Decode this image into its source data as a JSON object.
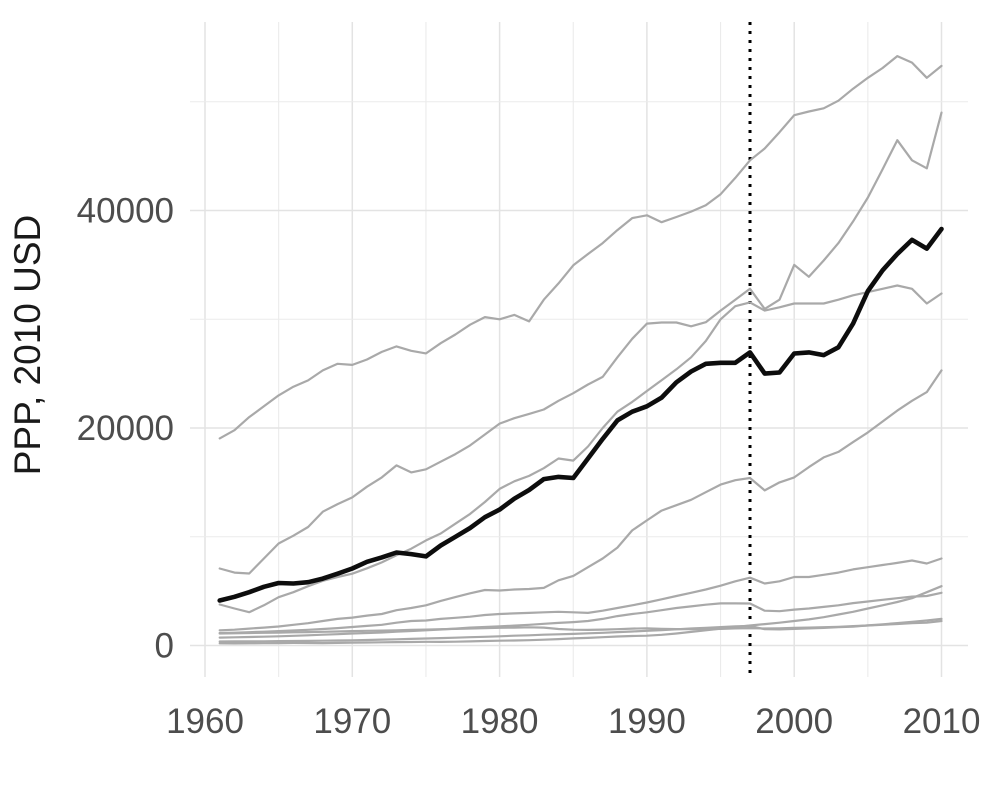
{
  "chart_data": {
    "type": "line",
    "title": "",
    "xlabel": "",
    "ylabel": "PPP, 2010 USD",
    "x_tick_labels": [
      "1960",
      "1970",
      "1980",
      "1990",
      "2000",
      "2010"
    ],
    "x_tick_values": [
      1960,
      1970,
      1980,
      1990,
      2000,
      2010
    ],
    "x_minor_values": [
      1965,
      1975,
      1985,
      1995,
      2005
    ],
    "y_tick_labels": [
      "0",
      "20000",
      "40000"
    ],
    "y_tick_values": [
      0,
      20000,
      40000
    ],
    "y_minor_values": [
      10000,
      30000,
      50000
    ],
    "xlim": [
      1958.5,
      2011.8
    ],
    "ylim": [
      -2900,
      57300
    ],
    "grid": "on",
    "legend": "none",
    "vline": {
      "x": 1997,
      "style": "dotted",
      "color": "#000000"
    },
    "colors": {
      "gray_series": "#a9a9a9",
      "highlight_series": "#0d0d0d",
      "grid_major": "#e3e3e3",
      "grid_minor": "#ebebeb",
      "tick_text": "#4d4d4d",
      "axis_title": "#1a1a1a",
      "background": "#ffffff"
    },
    "x": [
      1961,
      1962,
      1963,
      1964,
      1965,
      1966,
      1967,
      1968,
      1969,
      1970,
      1971,
      1972,
      1973,
      1974,
      1975,
      1976,
      1977,
      1978,
      1979,
      1980,
      1981,
      1982,
      1983,
      1984,
      1985,
      1986,
      1987,
      1988,
      1989,
      1990,
      1991,
      1992,
      1993,
      1994,
      1995,
      1996,
      1997,
      1998,
      1999,
      2000,
      2001,
      2002,
      2003,
      2004,
      2005,
      2006,
      2007,
      2008,
      2009,
      2010
    ],
    "series": [
      {
        "name": "gray-1",
        "role": "context",
        "values": [
          19040,
          19800,
          21000,
          22000,
          23000,
          23800,
          24380,
          25300,
          25900,
          25800,
          26300,
          27000,
          27500,
          27100,
          26860,
          27800,
          28600,
          29500,
          30200,
          30000,
          30400,
          29800,
          31800,
          33300,
          34960,
          36000,
          37000,
          38200,
          39300,
          39560,
          38920,
          39400,
          39900,
          40480,
          41500,
          43000,
          44620,
          45700,
          47200,
          48760,
          49100,
          49400,
          50100,
          51200,
          52200,
          53100,
          54200,
          53600,
          52200,
          53300
        ]
      },
      {
        "name": "gray-2",
        "role": "context",
        "values": [
          7080,
          6700,
          6620,
          8000,
          9380,
          10100,
          10900,
          12300,
          13000,
          13620,
          14600,
          15460,
          16560,
          15920,
          16200,
          16900,
          17600,
          18400,
          19400,
          20400,
          20900,
          21300,
          21700,
          22500,
          23200,
          24000,
          24700,
          26500,
          28200,
          29600,
          29700,
          29700,
          29350,
          29730,
          30800,
          31800,
          32800,
          30950,
          31800,
          35000,
          33900,
          35400,
          37000,
          39000,
          41200,
          43800,
          46460,
          44620,
          43880,
          49000
        ]
      },
      {
        "name": "gray-3",
        "role": "context",
        "values": [
          3770,
          3400,
          3060,
          3700,
          4440,
          4900,
          5450,
          5950,
          6300,
          6600,
          7100,
          7640,
          8300,
          8900,
          9660,
          10300,
          11200,
          12100,
          13200,
          14400,
          15100,
          15600,
          16300,
          17200,
          17000,
          18300,
          20000,
          21500,
          22400,
          23400,
          24400,
          25400,
          26500,
          28000,
          30000,
          31200,
          31550,
          30800,
          31100,
          31450,
          31450,
          31450,
          31800,
          32200,
          32500,
          32800,
          33100,
          32800,
          31450,
          32370
        ]
      },
      {
        "name": "gray-4",
        "role": "context",
        "values": [
          1400,
          1450,
          1550,
          1650,
          1750,
          1900,
          2050,
          2250,
          2450,
          2570,
          2750,
          2900,
          3250,
          3450,
          3700,
          4100,
          4450,
          4800,
          5100,
          5060,
          5150,
          5200,
          5300,
          6000,
          6400,
          7200,
          8000,
          9000,
          10580,
          11500,
          12400,
          12900,
          13400,
          14100,
          14800,
          15200,
          15400,
          14260,
          15000,
          15460,
          16400,
          17300,
          17800,
          18700,
          19600,
          20600,
          21600,
          22500,
          23300,
          25300
        ]
      },
      {
        "name": "gray-5",
        "role": "context",
        "values": [
          1150,
          1180,
          1220,
          1270,
          1320,
          1380,
          1440,
          1520,
          1600,
          1700,
          1800,
          1900,
          2100,
          2250,
          2300,
          2450,
          2550,
          2650,
          2800,
          2900,
          2950,
          3000,
          3050,
          3100,
          3050,
          3000,
          3200,
          3450,
          3700,
          3950,
          4250,
          4550,
          4850,
          5150,
          5500,
          5900,
          6230,
          5700,
          5900,
          6300,
          6300,
          6500,
          6700,
          7000,
          7200,
          7400,
          7600,
          7820,
          7540,
          8000
        ]
      },
      {
        "name": "gray-6",
        "role": "context",
        "values": [
          730,
          750,
          780,
          810,
          850,
          890,
          940,
          990,
          1040,
          1100,
          1150,
          1200,
          1280,
          1330,
          1400,
          1470,
          1550,
          1650,
          1700,
          1760,
          1830,
          1900,
          2000,
          2080,
          2150,
          2250,
          2450,
          2700,
          2900,
          3050,
          3250,
          3450,
          3600,
          3750,
          3870,
          3870,
          3860,
          3200,
          3150,
          3300,
          3400,
          3550,
          3700,
          3900,
          4050,
          4200,
          4350,
          4500,
          4550,
          4850
        ]
      },
      {
        "name": "gray-7",
        "role": "context",
        "values": [
          200,
          190,
          200,
          210,
          220,
          240,
          230,
          220,
          240,
          260,
          280,
          290,
          310,
          320,
          340,
          330,
          350,
          380,
          410,
          440,
          460,
          490,
          530,
          590,
          650,
          700,
          760,
          830,
          870,
          900,
          980,
          1100,
          1250,
          1400,
          1550,
          1700,
          1840,
          1970,
          2100,
          2250,
          2400,
          2600,
          2850,
          3100,
          3400,
          3700,
          4000,
          4350,
          4900,
          5450
        ]
      },
      {
        "name": "gray-8",
        "role": "context",
        "values": [
          370,
          380,
          380,
          390,
          400,
          410,
          420,
          440,
          460,
          480,
          510,
          540,
          570,
          610,
          640,
          680,
          720,
          760,
          800,
          850,
          900,
          940,
          990,
          1030,
          1070,
          1120,
          1170,
          1230,
          1290,
          1350,
          1420,
          1490,
          1560,
          1620,
          1690,
          1760,
          1790,
          1500,
          1480,
          1530,
          1570,
          1620,
          1680,
          1740,
          1850,
          1950,
          2060,
          2170,
          2300,
          2450
        ]
      },
      {
        "name": "gray-9",
        "role": "context",
        "values": [
          1100,
          1120,
          1150,
          1170,
          1190,
          1210,
          1230,
          1260,
          1290,
          1320,
          1350,
          1370,
          1400,
          1430,
          1460,
          1500,
          1530,
          1560,
          1600,
          1630,
          1650,
          1670,
          1650,
          1520,
          1450,
          1430,
          1460,
          1500,
          1550,
          1580,
          1540,
          1510,
          1500,
          1510,
          1530,
          1570,
          1600,
          1560,
          1580,
          1620,
          1650,
          1680,
          1720,
          1780,
          1840,
          1900,
          1980,
          2050,
          2100,
          2250
        ]
      },
      {
        "name": "black-highlight",
        "role": "highlight",
        "values": [
          4140,
          4480,
          4900,
          5400,
          5750,
          5700,
          5820,
          6150,
          6600,
          7080,
          7700,
          8100,
          8550,
          8400,
          8190,
          9200,
          10000,
          10800,
          11800,
          12500,
          13500,
          14300,
          15300,
          15500,
          15400,
          17200,
          19000,
          20700,
          21500,
          22000,
          22800,
          24200,
          25200,
          25900,
          26000,
          26000,
          26950,
          25000,
          25100,
          26850,
          26950,
          26700,
          27420,
          29600,
          32600,
          34500,
          36000,
          37300,
          36500,
          38300
        ]
      }
    ]
  }
}
